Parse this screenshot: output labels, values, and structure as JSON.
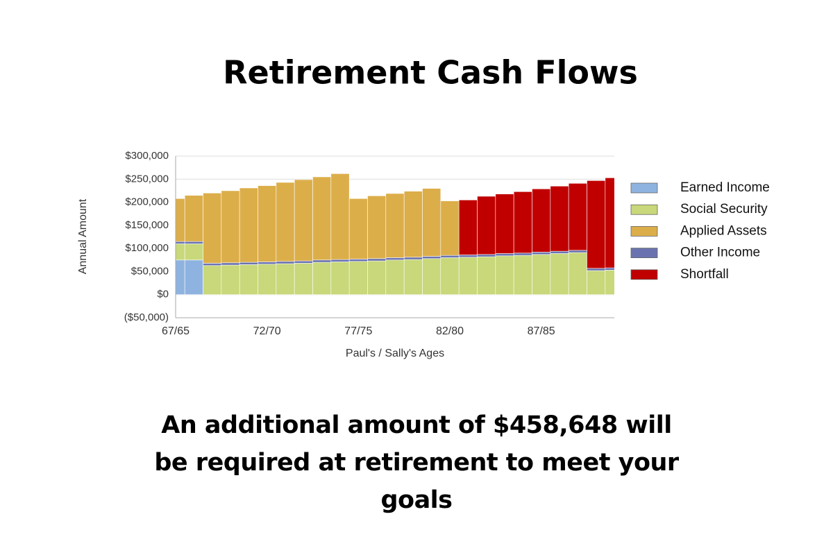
{
  "title": "Retirement Cash Flows",
  "caption": "An additional amount of $458,648 will be required at retirement to meet your goals",
  "chart_data": {
    "type": "stacked-bar",
    "x_label": "Paul's / Sally's Ages",
    "y_label": "Annual Amount",
    "categories": [
      "67/65",
      null,
      null,
      null,
      null,
      "72/70",
      null,
      null,
      null,
      null,
      "77/75",
      null,
      null,
      null,
      null,
      "82/80",
      null,
      null,
      null,
      null,
      "87/85",
      null,
      null,
      null,
      null
    ],
    "series": [
      {
        "name": "Earned Income",
        "color": "#8fb3e0",
        "values": [
          75000,
          75000,
          0,
          0,
          0,
          0,
          0,
          0,
          0,
          0,
          0,
          0,
          0,
          0,
          0,
          0,
          0,
          0,
          0,
          0,
          0,
          0,
          0,
          0,
          0
        ]
      },
      {
        "name": "Social Security",
        "color": "#c8d87a",
        "values": [
          35000,
          35000,
          63000,
          64000,
          65000,
          66000,
          67000,
          68000,
          70000,
          71000,
          72000,
          73000,
          75000,
          76000,
          78000,
          80000,
          81000,
          82000,
          84000,
          85000,
          87000,
          89000,
          91000,
          52000,
          53000
        ]
      },
      {
        "name": "Applied Assets",
        "color": "#dcae4a",
        "values": [
          93000,
          100000,
          152000,
          156000,
          161000,
          165000,
          171000,
          176000,
          180000,
          186000,
          131000,
          136000,
          139000,
          143000,
          147000,
          118000,
          0,
          0,
          0,
          0,
          0,
          0,
          0,
          0,
          0
        ]
      },
      {
        "name": "Other Income",
        "color": "#6a73b0",
        "values": [
          5000,
          5000,
          5000,
          5000,
          5000,
          5000,
          5000,
          5000,
          5000,
          5000,
          5000,
          5000,
          5000,
          5000,
          5000,
          5000,
          5000,
          5000,
          5000,
          5000,
          5000,
          5000,
          5000,
          5000,
          5000
        ]
      },
      {
        "name": "Shortfall",
        "color": "#c00000",
        "values": [
          0,
          0,
          0,
          0,
          0,
          0,
          0,
          0,
          0,
          0,
          0,
          0,
          0,
          0,
          0,
          0,
          119000,
          126000,
          129000,
          133000,
          137000,
          141000,
          145000,
          190000,
          195000
        ]
      }
    ],
    "ylim": [
      -50000,
      300000
    ],
    "yticks": [
      {
        "value": -50000,
        "label": "($50,000)"
      },
      {
        "value": 0,
        "label": "$0"
      },
      {
        "value": 50000,
        "label": "$50,000"
      },
      {
        "value": 100000,
        "label": "$100,000"
      },
      {
        "value": 150000,
        "label": "$150,000"
      },
      {
        "value": 200000,
        "label": "$200,000"
      },
      {
        "value": 250000,
        "label": "$250,000"
      },
      {
        "value": 300000,
        "label": "$300,000"
      }
    ],
    "grid": true,
    "legend": "right"
  }
}
